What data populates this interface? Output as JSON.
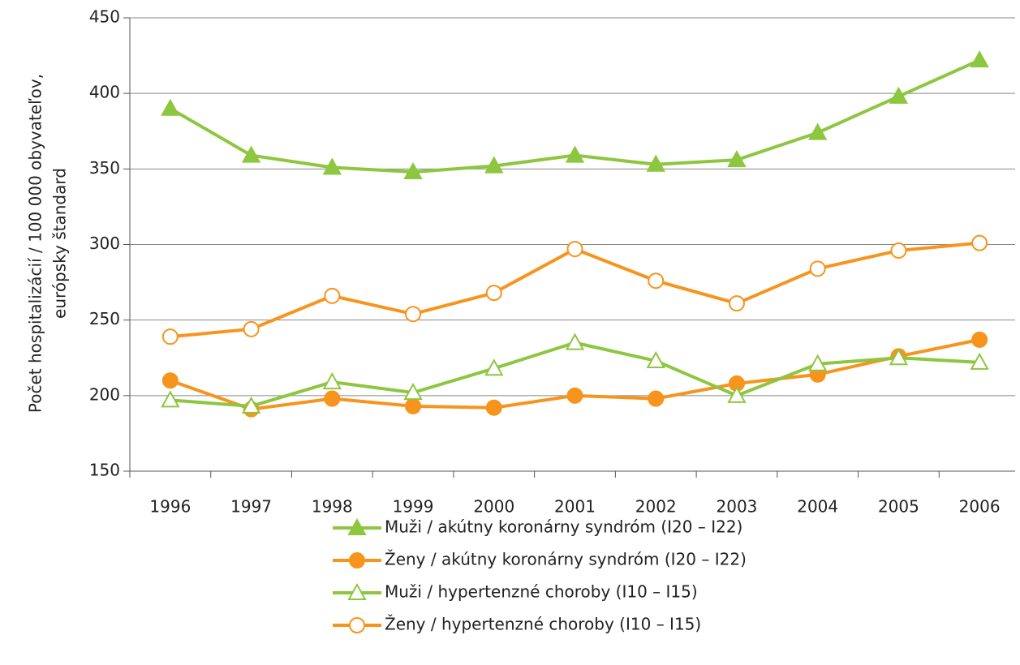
{
  "chart_data": {
    "type": "line",
    "ylabel": [
      "Počet hospitalizácií / 100 000 obyvateľov,",
      "európsky štandard"
    ],
    "categories": [
      "1996",
      "1997",
      "1998",
      "1999",
      "2000",
      "2001",
      "2002",
      "2003",
      "2004",
      "2005",
      "2006"
    ],
    "series": [
      {
        "name": "Muži / akútny koronárny syndróm (I20 – I22)",
        "color": "#8dc63f",
        "marker": "triangle",
        "filled": true,
        "values": [
          390,
          359,
          351,
          348,
          352,
          359,
          353,
          356,
          374,
          398,
          422
        ]
      },
      {
        "name": "Ženy / akútny koronárny syndróm (I20 – I22)",
        "color": "#f7941d",
        "marker": "circle",
        "filled": true,
        "values": [
          210,
          191,
          198,
          193,
          192,
          200,
          198,
          208,
          214,
          226,
          237
        ]
      },
      {
        "name": "Muži / hypertenzné choroby (I10 – I15)",
        "color": "#8dc63f",
        "marker": "triangle",
        "filled": false,
        "values": [
          197,
          193,
          209,
          202,
          218,
          235,
          223,
          200,
          221,
          225,
          222
        ]
      },
      {
        "name": "Ženy / hypertenzné choroby (I10 – I15)",
        "color": "#f7941d",
        "marker": "circle",
        "filled": false,
        "values": [
          239,
          244,
          266,
          254,
          268,
          297,
          276,
          261,
          284,
          296,
          301
        ]
      }
    ],
    "ylim": [
      150,
      450
    ],
    "yticks": [
      150,
      200,
      250,
      300,
      350,
      400,
      450
    ],
    "grid": true,
    "legend": "bottom"
  }
}
